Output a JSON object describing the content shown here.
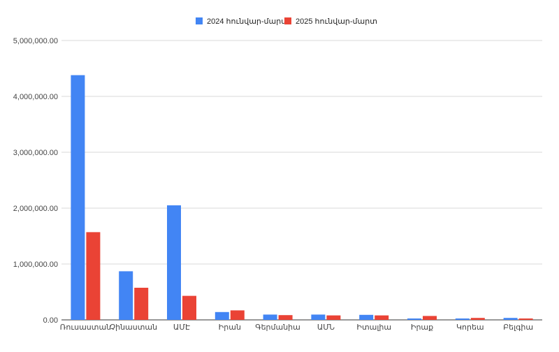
{
  "chart_data": {
    "type": "bar",
    "categories": [
      "Ռուսաստան",
      "Չինաստան",
      "ԱՄԷ",
      "Իրան",
      "Գերմանիա",
      "ԱՄՆ",
      "Իտալիա",
      "Իրաք",
      "Կորեա",
      "Բելգիա"
    ],
    "series": [
      {
        "name": "2024 հունվար-մարտ",
        "color": "#4285f4",
        "values": [
          4380000,
          870000,
          2050000,
          140000,
          95000,
          95000,
          90000,
          25000,
          25000,
          35000
        ]
      },
      {
        "name": "2025 հունվար-մարտ",
        "color": "#ea4335",
        "values": [
          1570000,
          575000,
          430000,
          170000,
          85000,
          80000,
          80000,
          70000,
          35000,
          25000
        ]
      }
    ],
    "y_ticks": [
      "0.00",
      "1,000,000.00",
      "2,000,000.00",
      "3,000,000.00",
      "4,000,000.00",
      "5,000,000.00"
    ],
    "ylim": [
      0,
      5000000
    ],
    "grid": true,
    "legend_position": "top"
  }
}
